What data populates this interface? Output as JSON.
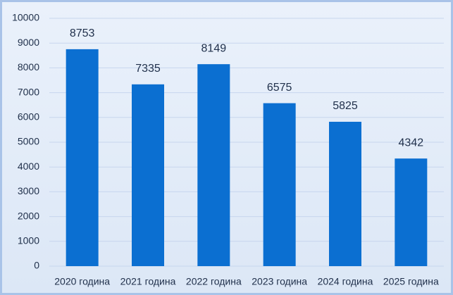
{
  "chart_data": {
    "type": "bar",
    "categories": [
      "2020 година",
      "2021 година",
      "2022 година",
      "2023 година",
      "2024 година",
      "2025 година"
    ],
    "values": [
      8753,
      7335,
      8149,
      6575,
      5825,
      4342
    ],
    "color": "#0b6fd1",
    "ylim": [
      0,
      10000
    ],
    "yticks": [
      0,
      1000,
      2000,
      3000,
      4000,
      5000,
      6000,
      7000,
      8000,
      9000,
      10000
    ],
    "grid": true
  }
}
